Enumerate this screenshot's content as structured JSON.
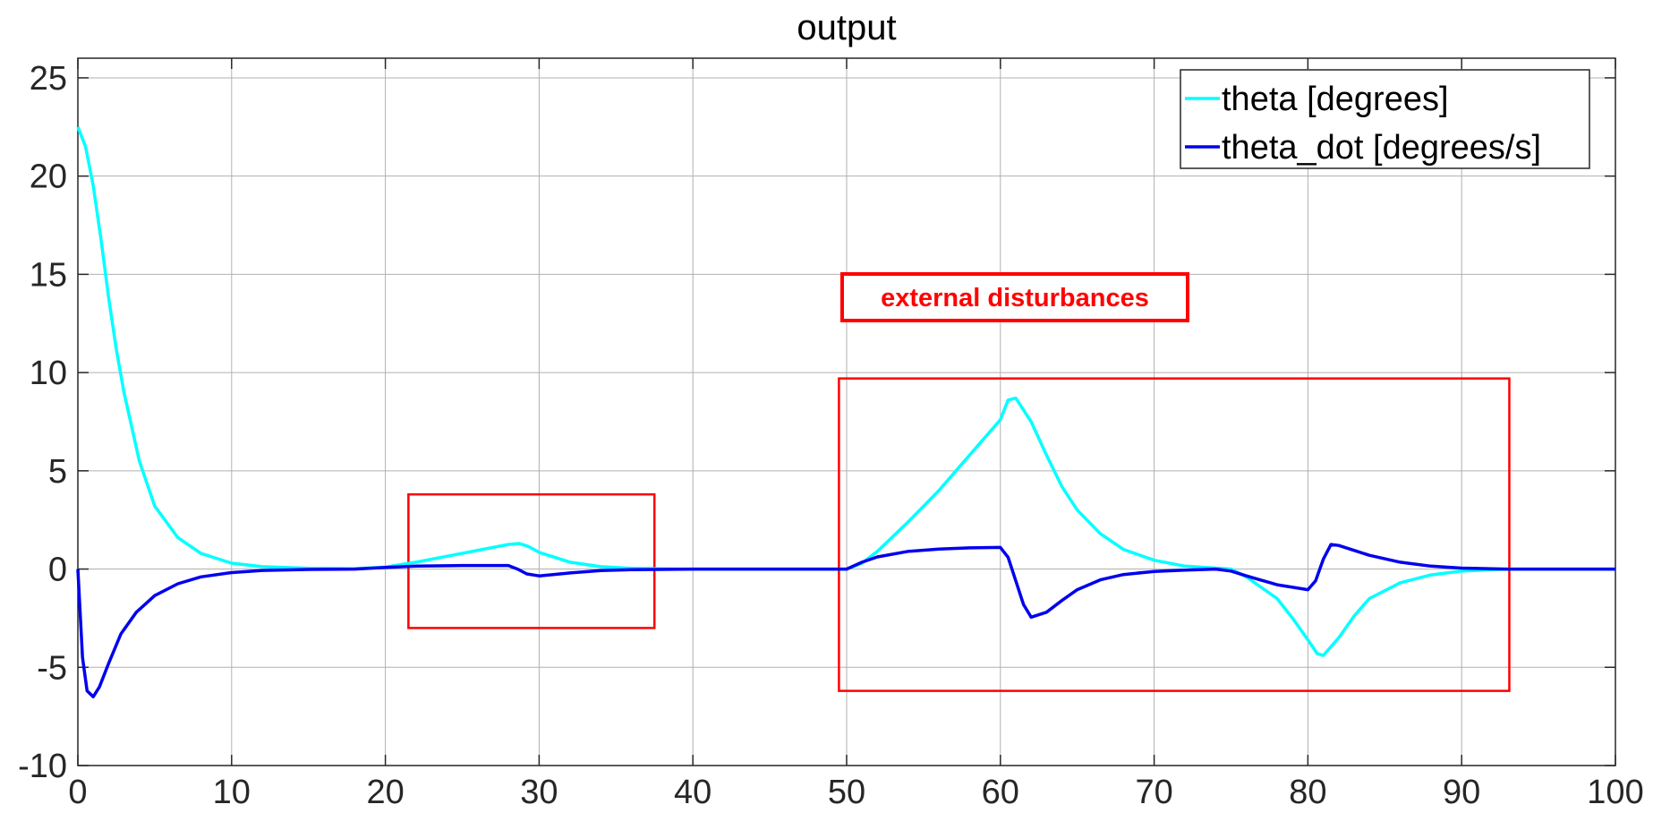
{
  "chart_data": {
    "type": "line",
    "title": "output",
    "xlabel": "",
    "ylabel": "",
    "xlim": [
      0,
      100
    ],
    "ylim": [
      -10,
      26
    ],
    "xticks": [
      0,
      10,
      20,
      30,
      40,
      50,
      60,
      70,
      80,
      90,
      100
    ],
    "yticks": [
      -10,
      -5,
      0,
      5,
      10,
      15,
      20,
      25
    ],
    "grid": true,
    "legend_position": "top-right",
    "series": [
      {
        "name": "theta [degrees]",
        "color": "#00ffff",
        "x": [
          0,
          0.5,
          1,
          1.5,
          2,
          2.5,
          3,
          4,
          5,
          6.5,
          8,
          10,
          12,
          15,
          18,
          20,
          22,
          24,
          26,
          28,
          28.7,
          29.3,
          30,
          32,
          34,
          36,
          38,
          40,
          50,
          51,
          52,
          54,
          56,
          58,
          60,
          60.5,
          61,
          62,
          63,
          64,
          65,
          66.5,
          68,
          70,
          72,
          74,
          75,
          76,
          78,
          79,
          80,
          80.6,
          81,
          82,
          83,
          84,
          86,
          88,
          90,
          93,
          100
        ],
        "y": [
          22.5,
          21.5,
          19.5,
          16.8,
          13.8,
          11.2,
          9.0,
          5.5,
          3.2,
          1.6,
          0.8,
          0.3,
          0.12,
          0.04,
          0.02,
          0.1,
          0.35,
          0.65,
          0.95,
          1.25,
          1.3,
          1.15,
          0.85,
          0.35,
          0.12,
          0.04,
          0.01,
          0.0,
          0.0,
          0.3,
          0.9,
          2.4,
          4.0,
          5.8,
          7.6,
          8.6,
          8.7,
          7.5,
          5.8,
          4.2,
          3.0,
          1.8,
          1.0,
          0.45,
          0.15,
          0.05,
          0.0,
          -0.4,
          -1.5,
          -2.5,
          -3.6,
          -4.3,
          -4.4,
          -3.5,
          -2.4,
          -1.5,
          -0.7,
          -0.3,
          -0.1,
          0.0,
          0.0
        ]
      },
      {
        "name": "theta_dot [degrees/s]",
        "color": "#0000ee",
        "x": [
          0,
          0.3,
          0.6,
          1.0,
          1.4,
          2,
          2.8,
          3.8,
          5,
          6.5,
          8,
          10,
          12,
          15,
          18,
          20,
          22,
          25,
          28,
          28.6,
          29.2,
          30,
          32,
          34,
          36,
          40,
          50,
          51,
          52,
          54,
          56,
          58,
          60,
          60.5,
          61,
          61.5,
          62,
          63,
          64,
          65,
          66.5,
          68,
          70,
          72,
          74,
          75,
          76,
          78,
          80,
          80.5,
          81,
          81.5,
          82,
          83,
          84,
          86,
          88,
          90,
          93,
          100
        ],
        "y": [
          0,
          -4.5,
          -6.2,
          -6.5,
          -6.0,
          -4.8,
          -3.3,
          -2.2,
          -1.35,
          -0.75,
          -0.4,
          -0.18,
          -0.07,
          -0.02,
          0.0,
          0.08,
          0.15,
          0.18,
          0.18,
          0.0,
          -0.25,
          -0.35,
          -0.2,
          -0.08,
          -0.03,
          0.0,
          0.0,
          0.35,
          0.62,
          0.9,
          1.02,
          1.08,
          1.1,
          0.6,
          -0.6,
          -1.8,
          -2.45,
          -2.2,
          -1.6,
          -1.05,
          -0.55,
          -0.28,
          -0.12,
          -0.05,
          0.0,
          -0.1,
          -0.35,
          -0.8,
          -1.05,
          -0.6,
          0.5,
          1.25,
          1.2,
          0.95,
          0.7,
          0.35,
          0.15,
          0.05,
          0.0,
          0.0
        ]
      }
    ],
    "annotations": [
      {
        "text": "external disturbances",
        "color": "#ff0000"
      }
    ],
    "highlight_regions": [
      {
        "x0": 21.5,
        "x1": 37.5,
        "y0": -3.0,
        "y1": 3.8,
        "color": "#ff0000"
      },
      {
        "x0": 49.5,
        "x1": 93.1,
        "y0": -6.2,
        "y1": 9.7,
        "color": "#ff0000"
      }
    ]
  }
}
